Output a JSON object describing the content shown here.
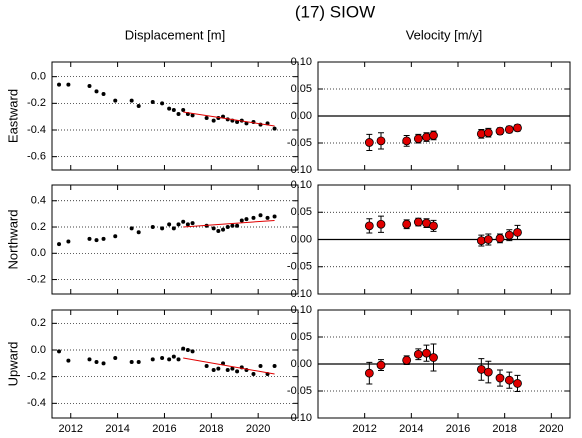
{
  "title": "(17) SIOW",
  "chart_data": [
    {
      "type": "scatter",
      "title": "Displacement [m]",
      "ylabel": "Eastward",
      "grid": true,
      "xlim": [
        2011.2,
        2021.7
      ],
      "ylim": [
        -0.7,
        0.11
      ],
      "yticks": [
        {
          "value": 0,
          "label": "0.0"
        },
        -0.2,
        -0.4,
        -0.6
      ],
      "series": [
        {
          "color": "#000000",
          "x": [
            2011.5,
            2011.9,
            2012.8,
            2013.1,
            2013.4,
            2013.9,
            2014.6,
            2014.9,
            2015.5,
            2015.9,
            2016.2,
            2016.4,
            2016.6,
            2016.8,
            2017.0,
            2017.2,
            2017.8,
            2018.1,
            2018.3,
            2018.5,
            2018.7,
            2018.9,
            2019.1,
            2019.3,
            2019.5,
            2019.8,
            2020.1,
            2020.4,
            2020.7
          ],
          "values": [
            -0.06,
            -0.06,
            -0.07,
            -0.11,
            -0.13,
            -0.18,
            -0.18,
            -0.22,
            -0.19,
            -0.2,
            -0.24,
            -0.25,
            -0.28,
            -0.25,
            -0.28,
            -0.29,
            -0.31,
            -0.33,
            -0.31,
            -0.3,
            -0.32,
            -0.33,
            -0.34,
            -0.33,
            -0.35,
            -0.34,
            -0.36,
            -0.35,
            -0.39
          ]
        },
        {
          "type": "line",
          "color": "#e00000",
          "x": [
            2016.8,
            2020.7
          ],
          "values": [
            -0.265,
            -0.37
          ]
        }
      ]
    },
    {
      "type": "scatter",
      "title": "Velocity [m/y]",
      "grid": true,
      "zero_line": true,
      "xlim": [
        2010.0,
        2020.8
      ],
      "ylim": [
        -0.1,
        0.1
      ],
      "yticks": [
        {
          "value": -0.1,
          "label": "-0.10"
        },
        {
          "value": -0.05,
          "label": "-0.05"
        },
        {
          "value": 0,
          "label": "0.00"
        },
        {
          "value": 0.05,
          "label": "0.05"
        },
        {
          "value": 0.1,
          "label": "0.10"
        }
      ],
      "series": [
        {
          "color": "#e00000",
          "x": [
            2012.2,
            2012.7,
            2013.8,
            2014.3,
            2014.65,
            2014.95,
            2017.0,
            2017.3,
            2017.8,
            2018.2,
            2018.55
          ],
          "values": [
            -0.049,
            -0.046,
            -0.046,
            -0.042,
            -0.039,
            -0.036,
            -0.033,
            -0.031,
            -0.028,
            -0.025,
            -0.022
          ],
          "errors": [
            0.015,
            0.015,
            0.01,
            0.008,
            0.008,
            0.008,
            0.008,
            0.008,
            0.006,
            0.006,
            0.006
          ]
        }
      ]
    },
    {
      "type": "scatter",
      "ylabel": "Northward",
      "grid": true,
      "xlim": [
        2011.2,
        2021.7
      ],
      "ylim": [
        -0.31,
        0.52
      ],
      "yticks": [
        -0.2,
        {
          "value": 0,
          "label": "0.0"
        },
        0.2,
        0.4
      ],
      "series": [
        {
          "color": "#000000",
          "x": [
            2011.5,
            2011.9,
            2012.8,
            2013.1,
            2013.4,
            2013.9,
            2014.6,
            2014.9,
            2015.5,
            2015.9,
            2016.2,
            2016.4,
            2016.6,
            2016.8,
            2017.0,
            2017.2,
            2017.8,
            2018.1,
            2018.3,
            2018.5,
            2018.7,
            2018.9,
            2019.1,
            2019.3,
            2019.5,
            2019.8,
            2020.1,
            2020.4,
            2020.7
          ],
          "values": [
            0.07,
            0.09,
            0.11,
            0.1,
            0.11,
            0.13,
            0.19,
            0.16,
            0.2,
            0.19,
            0.22,
            0.19,
            0.22,
            0.24,
            0.22,
            0.23,
            0.21,
            0.19,
            0.17,
            0.18,
            0.2,
            0.21,
            0.21,
            0.25,
            0.26,
            0.27,
            0.29,
            0.27,
            0.28
          ]
        },
        {
          "type": "line",
          "color": "#e00000",
          "x": [
            2016.8,
            2020.7
          ],
          "values": [
            0.2,
            0.25
          ]
        }
      ]
    },
    {
      "type": "scatter",
      "grid": true,
      "zero_line": true,
      "xlim": [
        2010.0,
        2020.8
      ],
      "ylim": [
        -0.1,
        0.1
      ],
      "yticks": [
        {
          "value": -0.1,
          "label": "-0.10"
        },
        {
          "value": -0.05,
          "label": "-0.05"
        },
        {
          "value": 0,
          "label": "0.00"
        },
        {
          "value": 0.05,
          "label": "0.05"
        },
        {
          "value": 0.1,
          "label": "0.10"
        }
      ],
      "series": [
        {
          "color": "#e00000",
          "x": [
            2012.2,
            2012.7,
            2013.8,
            2014.3,
            2014.65,
            2014.95,
            2017.0,
            2017.3,
            2017.8,
            2018.2,
            2018.55
          ],
          "values": [
            0.025,
            0.028,
            0.028,
            0.032,
            0.03,
            0.025,
            -0.002,
            0.0,
            0.002,
            0.008,
            0.013
          ],
          "errors": [
            0.013,
            0.015,
            0.008,
            0.007,
            0.008,
            0.01,
            0.01,
            0.01,
            0.008,
            0.01,
            0.013
          ]
        }
      ]
    },
    {
      "type": "scatter",
      "ylabel": "Upward",
      "grid": true,
      "xlim": [
        2011.2,
        2021.7
      ],
      "ylim": [
        -0.51,
        0.3
      ],
      "xticks": [
        2012,
        2014,
        2016,
        2018,
        2020
      ],
      "yticks": [
        -0.4,
        -0.2,
        {
          "value": 0,
          "label": "0.0"
        },
        0.2
      ],
      "series": [
        {
          "color": "#000000",
          "x": [
            2011.5,
            2011.9,
            2012.8,
            2013.1,
            2013.4,
            2013.9,
            2014.6,
            2014.9,
            2015.5,
            2015.9,
            2016.2,
            2016.4,
            2016.6,
            2016.8,
            2017.0,
            2017.2,
            2017.8,
            2018.1,
            2018.3,
            2018.5,
            2018.7,
            2018.9,
            2019.1,
            2019.3,
            2019.5,
            2019.8,
            2020.1,
            2020.4,
            2020.7
          ],
          "values": [
            -0.01,
            -0.08,
            -0.07,
            -0.09,
            -0.1,
            -0.06,
            -0.09,
            -0.09,
            -0.07,
            -0.06,
            -0.07,
            -0.05,
            -0.07,
            0.01,
            0.0,
            -0.01,
            -0.12,
            -0.15,
            -0.14,
            -0.1,
            -0.15,
            -0.14,
            -0.16,
            -0.13,
            -0.15,
            -0.18,
            -0.12,
            -0.18,
            -0.12
          ]
        },
        {
          "type": "line",
          "color": "#e00000",
          "x": [
            2016.8,
            2020.7
          ],
          "values": [
            -0.06,
            -0.18
          ]
        }
      ]
    },
    {
      "type": "scatter",
      "grid": true,
      "zero_line": true,
      "xlim": [
        2010.0,
        2020.8
      ],
      "ylim": [
        -0.1,
        0.1
      ],
      "xticks": [
        2012,
        2014,
        2016,
        2018,
        2020
      ],
      "yticks": [
        {
          "value": -0.1,
          "label": "-0.10"
        },
        {
          "value": -0.05,
          "label": "-0.05"
        },
        {
          "value": 0,
          "label": "0.00"
        },
        {
          "value": 0.05,
          "label": "0.05"
        },
        {
          "value": 0.1,
          "label": "0.10"
        }
      ],
      "series": [
        {
          "color": "#e00000",
          "x": [
            2012.2,
            2012.7,
            2013.8,
            2014.3,
            2014.65,
            2014.95,
            2017.0,
            2017.3,
            2017.8,
            2018.2,
            2018.55
          ],
          "values": [
            -0.017,
            -0.002,
            0.007,
            0.018,
            0.02,
            0.012,
            -0.01,
            -0.015,
            -0.026,
            -0.03,
            -0.036
          ],
          "errors": [
            0.02,
            0.01,
            0.008,
            0.01,
            0.015,
            0.025,
            0.02,
            0.02,
            0.015,
            0.015,
            0.015
          ]
        }
      ]
    }
  ]
}
